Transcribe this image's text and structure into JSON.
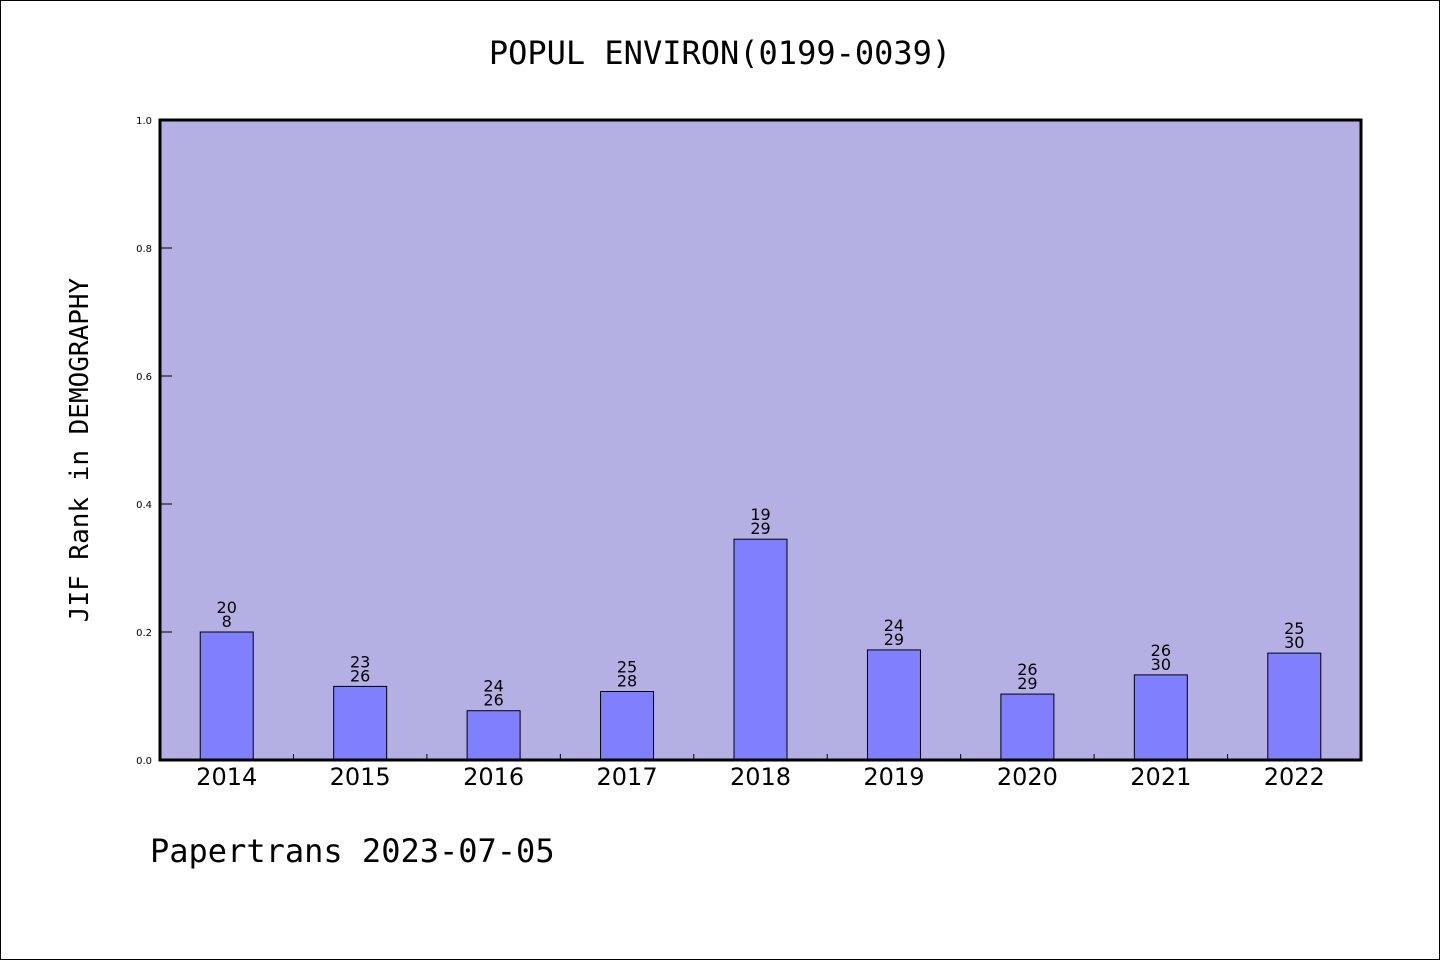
{
  "chart_data": {
    "type": "bar",
    "title": "POPUL ENVIRON(0199-0039)",
    "xlabel": "",
    "ylabel": "JIF Rank in DEMOGRAPHY",
    "ylim": [
      0,
      1.0
    ],
    "yticks": [
      "0.0",
      "0.2",
      "0.4",
      "0.6",
      "0.8",
      "1.0"
    ],
    "categories": [
      "2014",
      "2015",
      "2016",
      "2017",
      "2018",
      "2019",
      "2020",
      "2021",
      "2022"
    ],
    "values": [
      0.2,
      0.115,
      0.077,
      0.107,
      0.345,
      0.172,
      0.103,
      0.133,
      0.167
    ],
    "labels_top": [
      "20",
      "23",
      "24",
      "25",
      "19",
      "24",
      "26",
      "26",
      "25"
    ],
    "labels_bottom": [
      "8",
      "26",
      "26",
      "28",
      "29",
      "29",
      "29",
      "30",
      "30"
    ],
    "grid": false,
    "legend": "none",
    "colors": {
      "plot_background": "#b5b0e3",
      "bar_fill": "#8080ff",
      "bar_stroke": "#000000"
    }
  },
  "footer": {
    "text": "Papertrans 2023-07-05"
  }
}
